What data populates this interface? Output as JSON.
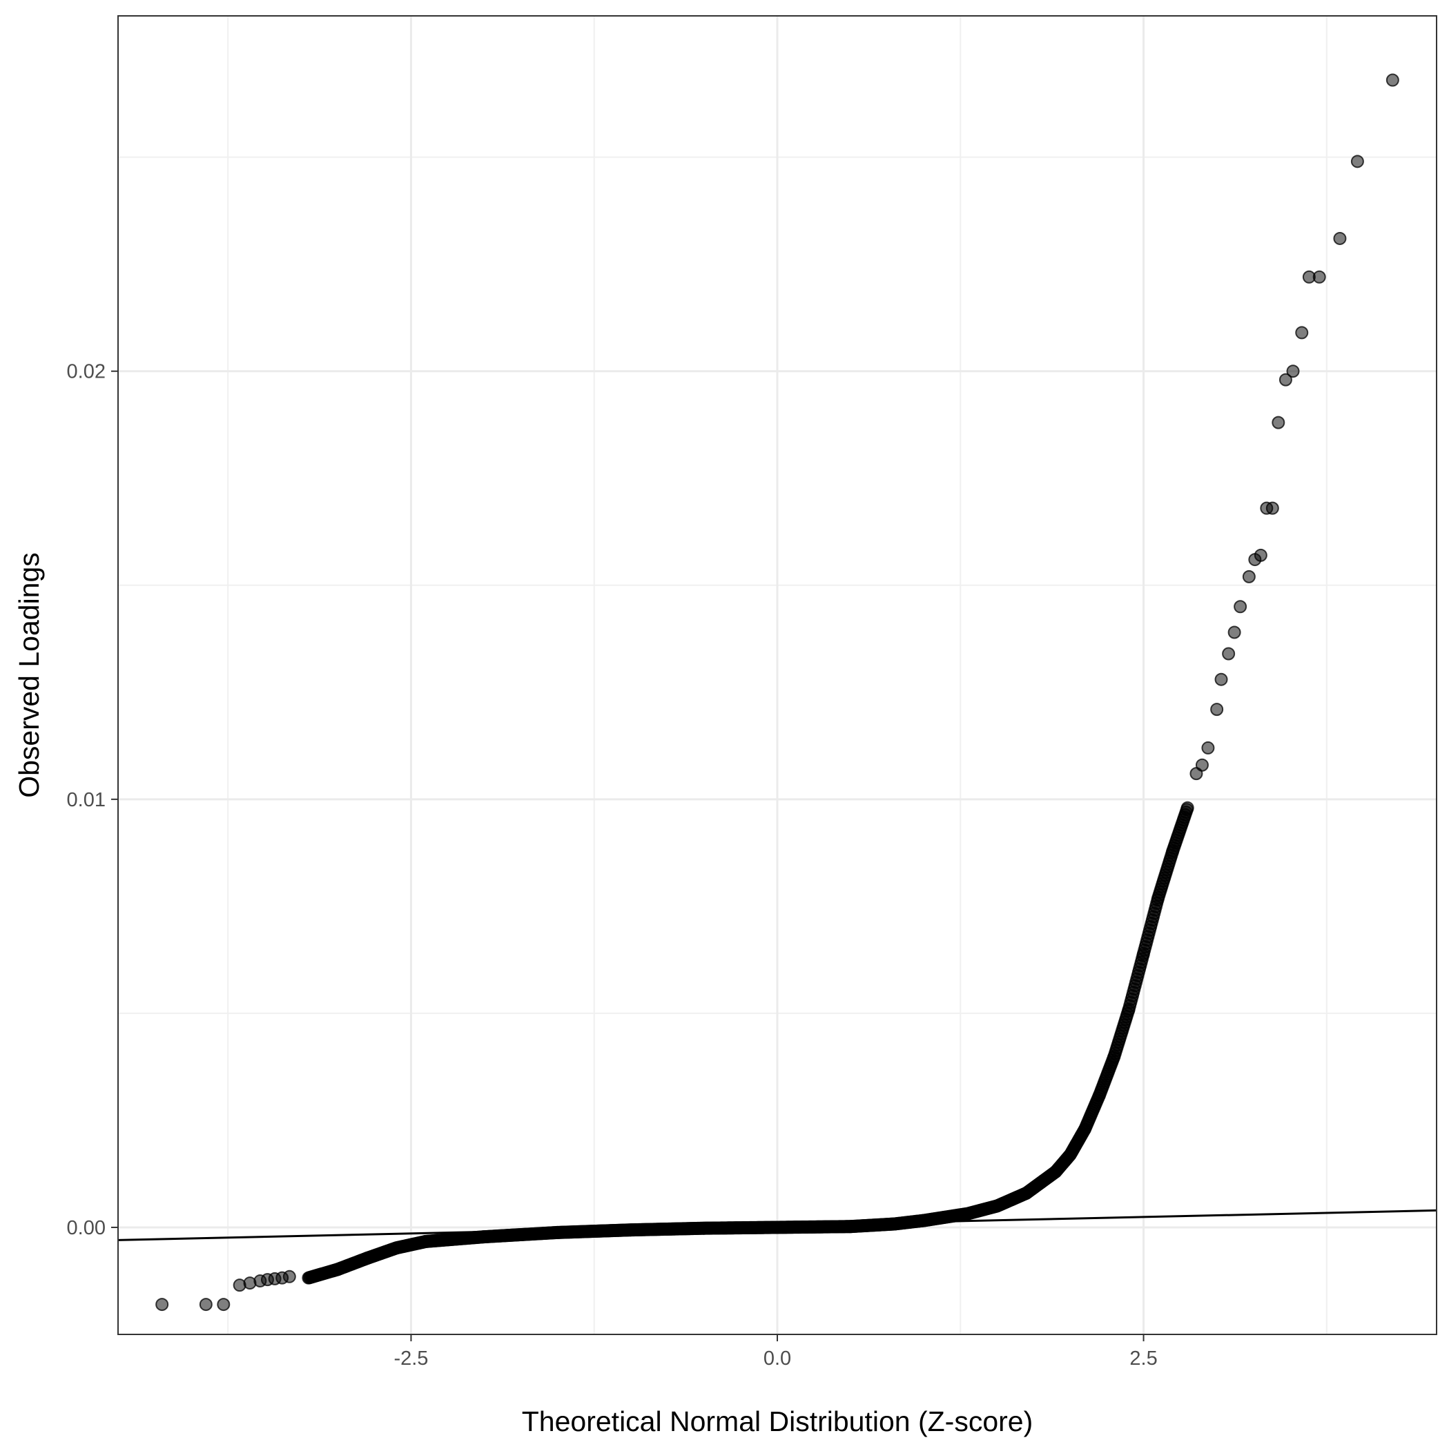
{
  "chart_data": {
    "type": "scatter",
    "title": "",
    "xlabel": "Theoretical Normal Distribution (Z-score)",
    "ylabel": "Observed Loadings",
    "xlim": [
      -4.5,
      4.5
    ],
    "ylim": [
      -0.0025,
      0.0283
    ],
    "x_ticks": [
      -2.5,
      0.0,
      2.5
    ],
    "x_tick_labels": [
      "-2.5",
      "0.0",
      "2.5"
    ],
    "y_ticks": [
      0.0,
      0.01,
      0.02
    ],
    "y_tick_labels": [
      "0.00",
      "0.01",
      "0.02"
    ],
    "grid": true,
    "legend": "none",
    "reference_line": {
      "slope": 7.7e-05,
      "intercept": 5e-05
    },
    "point_color": "#000000",
    "line_color": "#000000",
    "quantile_curve": [
      [
        -3.2,
        -0.00118
      ],
      [
        -3.0,
        -0.00098
      ],
      [
        -2.8,
        -0.00072
      ],
      [
        -2.6,
        -0.00048
      ],
      [
        -2.4,
        -0.00033
      ],
      [
        -2.0,
        -0.00022
      ],
      [
        -1.5,
        -0.00012
      ],
      [
        -1.0,
        -6e-05
      ],
      [
        -0.5,
        -2e-05
      ],
      [
        0.0,
        0.0
      ],
      [
        0.5,
        2e-05
      ],
      [
        0.8,
        8e-05
      ],
      [
        1.0,
        0.00016
      ],
      [
        1.3,
        0.00032
      ],
      [
        1.5,
        0.0005
      ],
      [
        1.7,
        0.0008
      ],
      [
        1.9,
        0.0013
      ],
      [
        2.0,
        0.0017
      ],
      [
        2.1,
        0.0023
      ],
      [
        2.2,
        0.0031
      ],
      [
        2.3,
        0.004
      ],
      [
        2.4,
        0.0051
      ],
      [
        2.5,
        0.0064
      ],
      [
        2.6,
        0.0077
      ],
      [
        2.7,
        0.0088
      ],
      [
        2.8,
        0.0098
      ]
    ],
    "outlier_points": [
      [
        -4.2,
        -0.0018
      ],
      [
        -3.9,
        -0.0018
      ],
      [
        -3.78,
        -0.0018
      ],
      [
        -3.67,
        -0.00135
      ],
      [
        -3.6,
        -0.0013
      ],
      [
        -3.53,
        -0.00125
      ],
      [
        -3.48,
        -0.00122
      ],
      [
        -3.43,
        -0.0012
      ],
      [
        -3.38,
        -0.00118
      ],
      [
        -3.33,
        -0.00115
      ],
      [
        2.86,
        0.0106
      ],
      [
        2.9,
        0.0108
      ],
      [
        2.94,
        0.0112
      ],
      [
        3.0,
        0.0121
      ],
      [
        3.03,
        0.0128
      ],
      [
        3.08,
        0.0134
      ],
      [
        3.12,
        0.0139
      ],
      [
        3.16,
        0.0145
      ],
      [
        3.22,
        0.0152
      ],
      [
        3.26,
        0.0156
      ],
      [
        3.3,
        0.0157
      ],
      [
        3.34,
        0.0168
      ],
      [
        3.38,
        0.0168
      ],
      [
        3.42,
        0.0188
      ],
      [
        3.47,
        0.0198
      ],
      [
        3.52,
        0.02
      ],
      [
        3.58,
        0.0209
      ],
      [
        3.63,
        0.0222
      ],
      [
        3.7,
        0.0222
      ],
      [
        3.84,
        0.0231
      ],
      [
        3.96,
        0.0249
      ],
      [
        4.2,
        0.0268
      ]
    ]
  }
}
